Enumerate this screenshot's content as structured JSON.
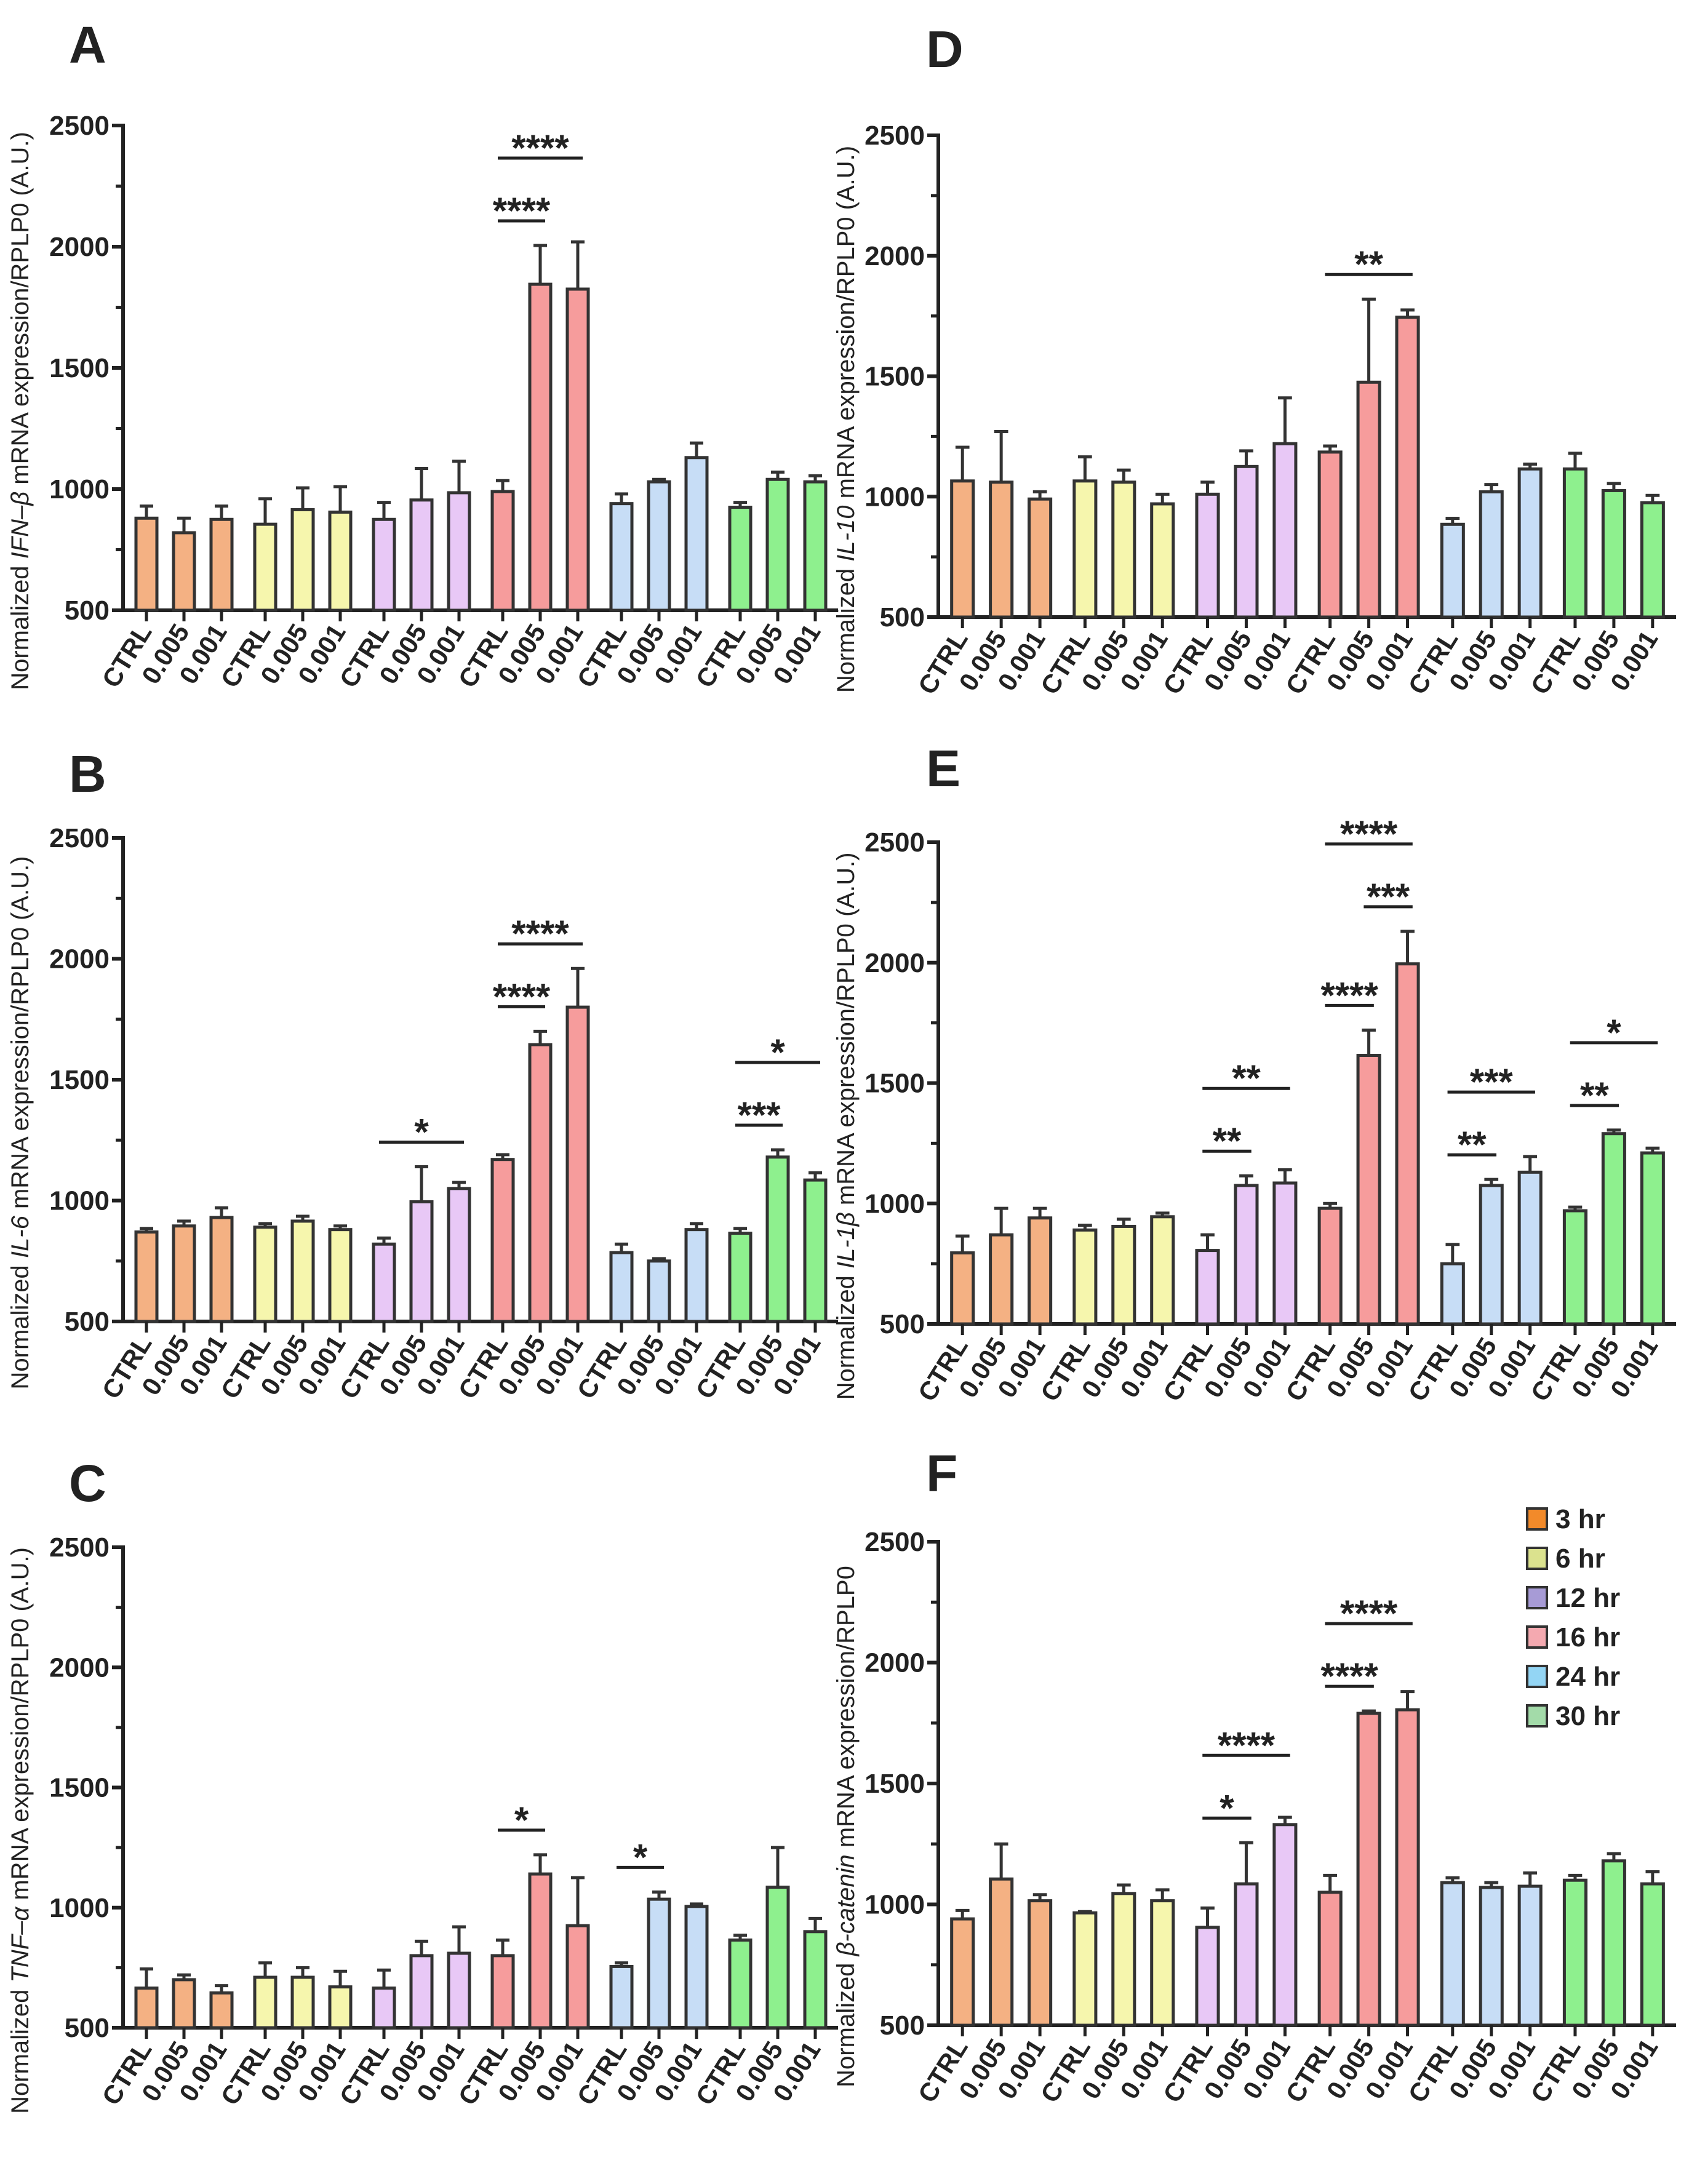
{
  "legend": [
    {
      "label": "3 hr",
      "color": "#f28a2a"
    },
    {
      "label": "6 hr",
      "color": "#dbe28e"
    },
    {
      "label": "12 hr",
      "color": "#a79bd6"
    },
    {
      "label": "16 hr",
      "color": "#f4a9b0"
    },
    {
      "label": "24 hr",
      "color": "#93d5f4"
    },
    {
      "label": "30 hr",
      "color": "#a3dba9"
    }
  ],
  "bar_colors": [
    "#f4b183",
    "#f6f6ad",
    "#e8c8f6",
    "#f69c9c",
    "#c7ddf6",
    "#8ef08e"
  ],
  "chart_data": [
    {
      "type": "bar",
      "panel": "A",
      "ylabel": {
        "prefix": "Normalized ",
        "gene": "IFN–β",
        "suffix": " mRNA expression/RPLP0 (A.U.)"
      },
      "ylim": [
        500,
        2500
      ],
      "yticks": [
        500,
        1000,
        1500,
        2000,
        2500
      ],
      "groups": [
        "3 hr",
        "6 hr",
        "12 hr",
        "16 hr",
        "24 hr",
        "30 hr"
      ],
      "categories": [
        "CTRL",
        "0.005",
        "0.001"
      ],
      "values": [
        [
          880,
          820,
          875
        ],
        [
          855,
          915,
          905
        ],
        [
          875,
          955,
          985
        ],
        [
          990,
          1845,
          1825
        ],
        [
          940,
          1030,
          1130
        ],
        [
          925,
          1040,
          1030
        ]
      ],
      "errors": [
        [
          50,
          60,
          55
        ],
        [
          105,
          90,
          105
        ],
        [
          70,
          130,
          130
        ],
        [
          45,
          160,
          195
        ],
        [
          40,
          10,
          60
        ],
        [
          20,
          30,
          25
        ]
      ],
      "significance": [
        {
          "group": 3,
          "from": 0,
          "to": 1,
          "label": "****"
        },
        {
          "group": 3,
          "from": 0,
          "to": 2,
          "label": "****"
        }
      ]
    },
    {
      "type": "bar",
      "panel": "B",
      "ylabel": {
        "prefix": "Normalized ",
        "gene": "IL-6",
        "suffix": " mRNA expression/RPLP0 (A.U.)"
      },
      "ylim": [
        500,
        2500
      ],
      "yticks": [
        500,
        1000,
        1500,
        2000,
        2500
      ],
      "groups": [
        "3 hr",
        "6 hr",
        "12 hr",
        "16 hr",
        "24 hr",
        "30 hr"
      ],
      "categories": [
        "CTRL",
        "0.005",
        "0.001"
      ],
      "values": [
        [
          870,
          895,
          930
        ],
        [
          890,
          915,
          880
        ],
        [
          820,
          995,
          1050
        ],
        [
          1170,
          1645,
          1800
        ],
        [
          785,
          750,
          880
        ],
        [
          865,
          1180,
          1085
        ]
      ],
      "errors": [
        [
          15,
          20,
          40
        ],
        [
          15,
          20,
          15
        ],
        [
          25,
          145,
          25
        ],
        [
          20,
          55,
          160
        ],
        [
          35,
          10,
          25
        ],
        [
          20,
          30,
          30
        ]
      ],
      "significance": [
        {
          "group": 2,
          "from": 0,
          "to": 2,
          "label": "*"
        },
        {
          "group": 3,
          "from": 0,
          "to": 1,
          "label": "****"
        },
        {
          "group": 3,
          "from": 0,
          "to": 2,
          "label": "****"
        },
        {
          "group": 5,
          "from": 0,
          "to": 1,
          "label": "***"
        },
        {
          "group": 5,
          "from": 0,
          "to": 2,
          "label": "*"
        }
      ]
    },
    {
      "type": "bar",
      "panel": "C",
      "ylabel": {
        "prefix": "Normalized ",
        "gene": "TNF–α",
        "suffix": " mRNA expression/RPLP0 (A.U.)"
      },
      "ylim": [
        500,
        2500
      ],
      "yticks": [
        500,
        1000,
        1500,
        2000,
        2500
      ],
      "groups": [
        "3 hr",
        "6 hr",
        "12 hr",
        "16 hr",
        "24 hr",
        "30 hr"
      ],
      "categories": [
        "CTRL",
        "0.005",
        "0.001"
      ],
      "values": [
        [
          665,
          700,
          645
        ],
        [
          710,
          710,
          670
        ],
        [
          665,
          800,
          810
        ],
        [
          800,
          1140,
          925
        ],
        [
          755,
          1035,
          1005
        ],
        [
          865,
          1085,
          900
        ]
      ],
      "errors": [
        [
          80,
          20,
          30
        ],
        [
          60,
          40,
          65
        ],
        [
          75,
          60,
          110
        ],
        [
          65,
          80,
          200
        ],
        [
          15,
          30,
          10
        ],
        [
          20,
          165,
          55
        ]
      ],
      "significance": [
        {
          "group": 3,
          "from": 0,
          "to": 1,
          "label": "*"
        },
        {
          "group": 4,
          "from": 0,
          "to": 1,
          "label": "*"
        }
      ]
    },
    {
      "type": "bar",
      "panel": "D",
      "ylabel": {
        "prefix": "Normalized ",
        "gene": "IL-10",
        "suffix": " mRNA expression/RPLP0 (A.U.)"
      },
      "ylim": [
        500,
        2500
      ],
      "yticks": [
        500,
        1000,
        1500,
        2000,
        2500
      ],
      "groups": [
        "3 hr",
        "6 hr",
        "12 hr",
        "16 hr",
        "24 hr",
        "30 hr"
      ],
      "categories": [
        "CTRL",
        "0.005",
        "0.001"
      ],
      "values": [
        [
          1065,
          1060,
          990
        ],
        [
          1065,
          1060,
          970
        ],
        [
          1010,
          1125,
          1220
        ],
        [
          1185,
          1475,
          1745
        ],
        [
          885,
          1020,
          1115
        ],
        [
          1115,
          1025,
          975
        ]
      ],
      "errors": [
        [
          140,
          210,
          30
        ],
        [
          100,
          50,
          40
        ],
        [
          50,
          65,
          190
        ],
        [
          25,
          345,
          30
        ],
        [
          25,
          30,
          20
        ],
        [
          65,
          30,
          30
        ]
      ],
      "significance": [
        {
          "group": 3,
          "from": 0,
          "to": 2,
          "label": "**"
        }
      ]
    },
    {
      "type": "bar",
      "panel": "E",
      "ylabel": {
        "prefix": "Normalized ",
        "gene": "IL-1β",
        "suffix": " mRNA expression/RPLP0 (A.U.)"
      },
      "ylim": [
        500,
        2500
      ],
      "yticks": [
        500,
        1000,
        1500,
        2000,
        2500
      ],
      "groups": [
        "3 hr",
        "6 hr",
        "12 hr",
        "16 hr",
        "24 hr",
        "30 hr"
      ],
      "categories": [
        "CTRL",
        "0.005",
        "0.001"
      ],
      "values": [
        [
          795,
          870,
          940
        ],
        [
          890,
          905,
          945
        ],
        [
          805,
          1075,
          1085
        ],
        [
          980,
          1615,
          1995
        ],
        [
          750,
          1075,
          1130
        ],
        [
          970,
          1290,
          1210
        ]
      ],
      "errors": [
        [
          70,
          110,
          40
        ],
        [
          20,
          30,
          15
        ],
        [
          65,
          40,
          55
        ],
        [
          20,
          105,
          135
        ],
        [
          80,
          25,
          65
        ],
        [
          15,
          15,
          20
        ]
      ],
      "significance": [
        {
          "group": 2,
          "from": 0,
          "to": 1,
          "label": "**"
        },
        {
          "group": 2,
          "from": 0,
          "to": 2,
          "label": "**"
        },
        {
          "group": 3,
          "from": 0,
          "to": 1,
          "label": "****"
        },
        {
          "group": 3,
          "from": 1,
          "to": 2,
          "label": "***"
        },
        {
          "group": 3,
          "from": 0,
          "to": 2,
          "label": "****"
        },
        {
          "group": 4,
          "from": 0,
          "to": 1,
          "label": "**"
        },
        {
          "group": 4,
          "from": 0,
          "to": 2,
          "label": "***"
        },
        {
          "group": 5,
          "from": 0,
          "to": 1,
          "label": "**"
        },
        {
          "group": 5,
          "from": 0,
          "to": 2,
          "label": "*"
        }
      ]
    },
    {
      "type": "bar",
      "panel": "F",
      "ylabel": {
        "prefix": "Normalized ",
        "gene": "β-catenin",
        "suffix": " mRNA expression/RPLP0"
      },
      "ylim": [
        500,
        2500
      ],
      "yticks": [
        500,
        1000,
        1500,
        2000,
        2500
      ],
      "groups": [
        "3 hr",
        "6 hr",
        "12 hr",
        "16 hr",
        "24 hr",
        "30 hr"
      ],
      "categories": [
        "CTRL",
        "0.005",
        "0.001"
      ],
      "values": [
        [
          940,
          1105,
          1015
        ],
        [
          965,
          1045,
          1015
        ],
        [
          905,
          1085,
          1330
        ],
        [
          1050,
          1790,
          1805
        ],
        [
          1090,
          1070,
          1075
        ],
        [
          1100,
          1180,
          1085
        ]
      ],
      "errors": [
        [
          35,
          145,
          25
        ],
        [
          5,
          35,
          45
        ],
        [
          80,
          170,
          30
        ],
        [
          70,
          10,
          75
        ],
        [
          20,
          20,
          55
        ],
        [
          20,
          30,
          50
        ]
      ],
      "significance": [
        {
          "group": 2,
          "from": 0,
          "to": 1,
          "label": "*"
        },
        {
          "group": 2,
          "from": 0,
          "to": 2,
          "label": "****"
        },
        {
          "group": 3,
          "from": 0,
          "to": 1,
          "label": "****"
        },
        {
          "group": 3,
          "from": 0,
          "to": 2,
          "label": "****"
        }
      ]
    }
  ]
}
